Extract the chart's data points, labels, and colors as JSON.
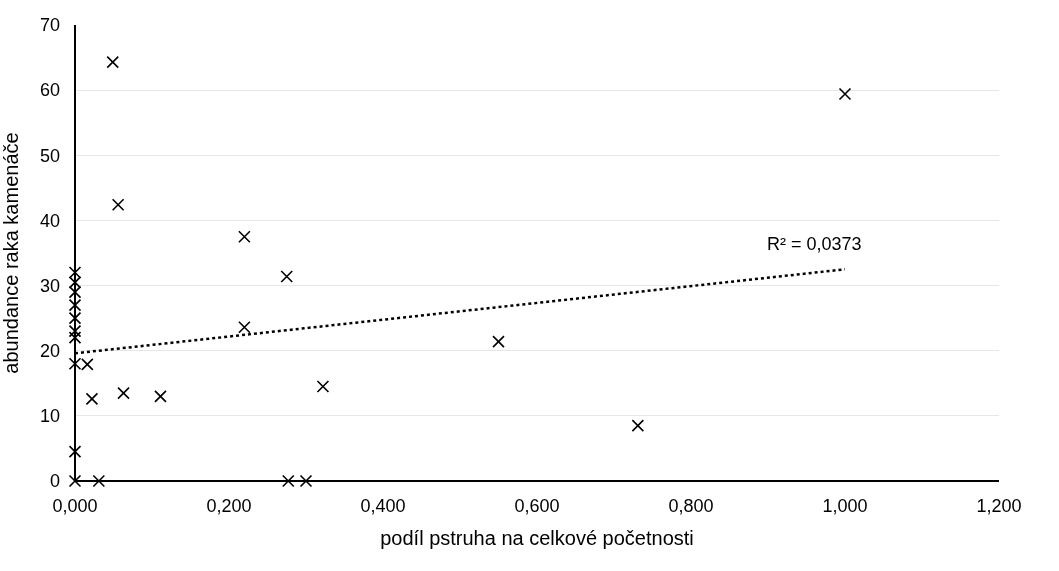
{
  "chart_data": {
    "type": "scatter",
    "xlabel": "podíl pstruha na celkové početnosti",
    "ylabel": "abundance raka kamenáče",
    "xlim": [
      0,
      1.2
    ],
    "ylim": [
      0,
      70
    ],
    "xticks": [
      {
        "value": 0,
        "label": "0,000"
      },
      {
        "value": 0.2,
        "label": "0,200"
      },
      {
        "value": 0.4,
        "label": "0,400"
      },
      {
        "value": 0.6,
        "label": "0,600"
      },
      {
        "value": 0.8,
        "label": "0,800"
      },
      {
        "value": 1.0,
        "label": "1,000"
      },
      {
        "value": 1.2,
        "label": "1,200"
      }
    ],
    "yticks": [
      0,
      10,
      20,
      30,
      40,
      50,
      60,
      70
    ],
    "grid": "y",
    "legend": false,
    "marker": "cross",
    "series": [
      {
        "color": "#000000",
        "x": [
          0,
          0,
          0,
          0,
          0,
          0,
          0,
          0,
          0,
          0,
          0.049,
          0.056,
          0.22,
          0.275,
          0.016,
          0.022,
          0.063,
          0.111,
          0.22,
          0.322,
          0.031,
          0.277,
          0.3,
          0.55,
          0.731,
          1.0
        ],
        "values": [
          32,
          30.5,
          29,
          27,
          25,
          23,
          22,
          18,
          4.5,
          0,
          64.3,
          42.4,
          37.5,
          31.4,
          17.9,
          12.6,
          13.5,
          13.0,
          23.6,
          14.5,
          0,
          0,
          0,
          21.4,
          8.5,
          59.4
        ]
      },
      {
        "type": "line",
        "color": "#000000",
        "line_style": "dotted",
        "marker": "none",
        "x": [
          0,
          1.0
        ],
        "values": [
          19.6,
          32.5
        ]
      }
    ],
    "annotations": [
      "R² = 0,0373"
    ]
  }
}
